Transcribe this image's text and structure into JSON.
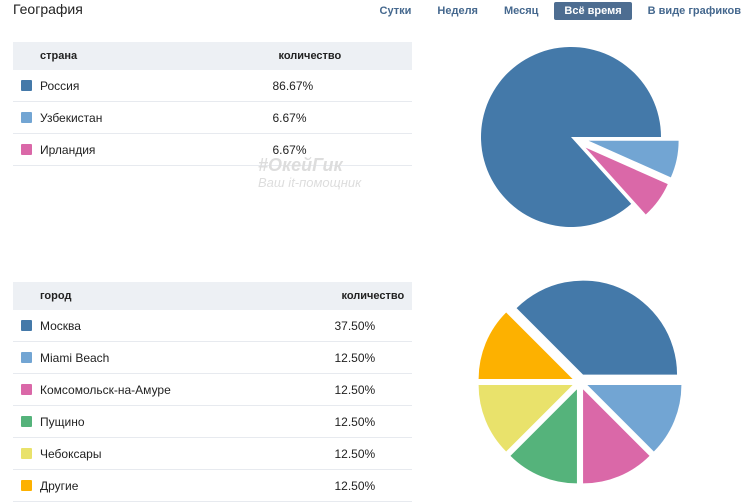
{
  "header": {
    "title": "География",
    "tabs": [
      "Сутки",
      "Неделя",
      "Месяц",
      "Всё время",
      "В виде графиков"
    ],
    "active_tab": 3
  },
  "watermark": {
    "line1": "#ОкейГик",
    "line2": "Ваш it-помощник"
  },
  "chart_data": [
    {
      "type": "pie",
      "headers": [
        "страна",
        "количество"
      ],
      "categories": [
        "Россия",
        "Узбекистан",
        "Ирландия"
      ],
      "values": [
        86.67,
        6.67,
        6.67
      ],
      "labels": [
        "86.67%",
        "6.67%",
        "6.67%"
      ],
      "colors": [
        "#4479a9",
        "#72a5d3",
        "#da68a8"
      ]
    },
    {
      "type": "pie",
      "headers": [
        "город",
        "количество"
      ],
      "categories": [
        "Москва",
        "Miami Beach",
        "Комсомольск-на-Амуре",
        "Пущино",
        "Чебоксары",
        "Другие"
      ],
      "values": [
        37.5,
        12.5,
        12.5,
        12.5,
        12.5,
        12.5
      ],
      "labels": [
        "37.50%",
        "12.50%",
        "12.50%",
        "12.50%",
        "12.50%",
        "12.50%"
      ],
      "colors": [
        "#4479a9",
        "#72a5d3",
        "#da68a8",
        "#55b37b",
        "#e9e26b",
        "#fdb100"
      ]
    }
  ]
}
